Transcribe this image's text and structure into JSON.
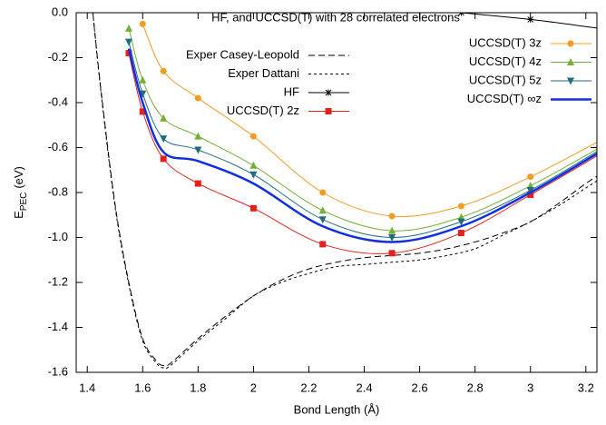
{
  "chart_data": {
    "type": "line",
    "title": "HF, and UCCSD(T) with 28 correlated electrons",
    "x_label": "Bond Length (Å)",
    "y_label_symbol": "E",
    "y_label_subscript": "PEC",
    "y_label_unit": "(eV)",
    "xlim": [
      1.36,
      3.24
    ],
    "ylim": [
      -1.6,
      0
    ],
    "xticks": [
      1.4,
      1.6,
      1.8,
      2,
      2.2,
      2.4,
      2.6,
      2.8,
      3,
      3.2
    ],
    "yticks": [
      {
        "value": 0,
        "label": "0.0"
      },
      -0.2,
      -0.4,
      -0.6,
      -0.8,
      {
        "value": -1,
        "label": "-1.0"
      },
      -1.2,
      -1.4,
      -1.6
    ],
    "grid": false,
    "legend": "top",
    "series": [
      {
        "name": "Exper Casey-Leopold",
        "color": "#000000",
        "dash": "long",
        "marker": "none",
        "width": 1,
        "x": [
          1.42,
          1.45,
          1.5,
          1.55,
          1.6,
          1.65,
          1.675,
          1.7,
          1.8,
          1.9,
          2.0,
          2.1,
          2.2,
          2.3,
          2.4,
          2.5,
          2.6,
          2.7,
          2.8,
          2.9,
          3.0,
          3.1,
          3.2,
          3.25
        ],
        "values": [
          0,
          -0.35,
          -0.85,
          -1.2,
          -1.45,
          -1.55,
          -1.57,
          -1.56,
          -1.45,
          -1.35,
          -1.26,
          -1.19,
          -1.14,
          -1.11,
          -1.09,
          -1.08,
          -1.07,
          -1.05,
          -1.02,
          -0.98,
          -0.93,
          -0.85,
          -0.76,
          -0.72
        ]
      },
      {
        "name": "Exper Dattani",
        "color": "#000000",
        "dash": "short",
        "marker": "none",
        "width": 1,
        "x": [
          1.42,
          1.45,
          1.5,
          1.55,
          1.6,
          1.65,
          1.675,
          1.7,
          1.8,
          1.9,
          2.0,
          2.1,
          2.2,
          2.3,
          2.4,
          2.5,
          2.6,
          2.7,
          2.8,
          2.9,
          3.0,
          3.1,
          3.2,
          3.25
        ],
        "values": [
          0,
          -0.36,
          -0.86,
          -1.21,
          -1.46,
          -1.56,
          -1.58,
          -1.57,
          -1.46,
          -1.36,
          -1.26,
          -1.2,
          -1.16,
          -1.13,
          -1.12,
          -1.11,
          -1.1,
          -1.08,
          -1.05,
          -0.99,
          -0.93,
          -0.86,
          -0.78,
          -0.74
        ]
      },
      {
        "name": "HF",
        "color": "#000000",
        "dash": "solid",
        "marker": "star",
        "width": 1,
        "x": [
          2.75,
          3.0,
          3.25
        ],
        "values": [
          0,
          -0.03,
          -0.07
        ]
      },
      {
        "name": "UCCSD(T) 2z",
        "color": "#e3201b",
        "dash": "solid",
        "marker": "square",
        "width": 1,
        "x": [
          1.55,
          1.6,
          1.675,
          1.8,
          2.0,
          2.25,
          2.5,
          2.75,
          3.0,
          3.25
        ],
        "values": [
          -0.18,
          -0.44,
          -0.65,
          -0.76,
          -0.87,
          -1.03,
          -1.07,
          -0.98,
          -0.81,
          -0.63
        ]
      },
      {
        "name": "UCCSD(T) 3z",
        "color": "#f39c1f",
        "dash": "solid",
        "marker": "circle",
        "width": 1,
        "x": [
          1.6,
          1.675,
          1.8,
          2.0,
          2.25,
          2.5,
          2.75,
          3.0,
          3.25
        ],
        "values": [
          -0.05,
          -0.26,
          -0.38,
          -0.55,
          -0.8,
          -0.905,
          -0.86,
          -0.73,
          -0.57
        ]
      },
      {
        "name": "UCCSD(T) 4z",
        "color": "#73b034",
        "dash": "solid",
        "marker": "triangle-up",
        "width": 1,
        "x": [
          1.55,
          1.6,
          1.675,
          1.8,
          2.0,
          2.25,
          2.5,
          2.75,
          3.0,
          3.25
        ],
        "values": [
          -0.07,
          -0.3,
          -0.47,
          -0.55,
          -0.68,
          -0.88,
          -0.97,
          -0.91,
          -0.77,
          -0.6
        ]
      },
      {
        "name": "UCCSD(T) 5z",
        "color": "#1f6e7e",
        "dash": "solid",
        "marker": "triangle-down",
        "width": 1,
        "x": [
          1.55,
          1.6,
          1.675,
          1.8,
          2.0,
          2.25,
          2.5,
          2.75,
          3.0,
          3.25
        ],
        "values": [
          -0.13,
          -0.36,
          -0.56,
          -0.61,
          -0.72,
          -0.92,
          -1.0,
          -0.93,
          -0.79,
          -0.61
        ]
      },
      {
        "name": "UCCSD(T) ∞z",
        "color": "#1030e0",
        "dash": "solid",
        "marker": "none",
        "width": 2.5,
        "x": [
          1.55,
          1.6,
          1.675,
          1.8,
          2.0,
          2.25,
          2.5,
          2.75,
          3.0,
          3.25
        ],
        "values": [
          -0.16,
          -0.4,
          -0.62,
          -0.66,
          -0.76,
          -0.95,
          -1.02,
          -0.95,
          -0.8,
          -0.62
        ]
      }
    ]
  }
}
